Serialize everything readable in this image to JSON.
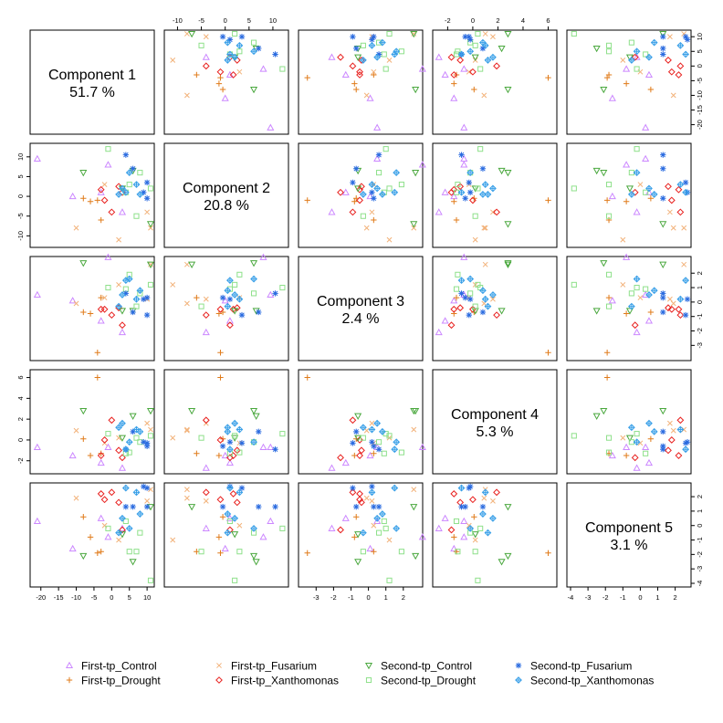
{
  "chart_data": {
    "type": "scatter",
    "components": [
      {
        "name": "Component 1",
        "variance": "51.7 %",
        "range": [
          -22,
          11
        ]
      },
      {
        "name": "Component 2",
        "variance": "20.8 %",
        "range": [
          -12,
          12.5
        ]
      },
      {
        "name": "Component 3",
        "variance": "2.4 %",
        "range": [
          -3.8,
          2.9
        ]
      },
      {
        "name": "Component 4",
        "variance": "5.3 %",
        "range": [
          -2.9,
          6.4
        ]
      },
      {
        "name": "Component 5",
        "variance": "3.1 %",
        "range": [
          -4,
          2.7
        ]
      }
    ],
    "ticks": [
      {
        "values": [
          -20,
          -15,
          -10,
          -5,
          0,
          5,
          10
        ],
        "labels": [
          "-20",
          "-15",
          "-10",
          "-5",
          "0",
          "5",
          "10"
        ]
      },
      {
        "values": [
          -10,
          -5,
          0,
          5,
          10
        ],
        "labels": [
          "-10",
          "-5",
          "0",
          "5",
          "10"
        ]
      },
      {
        "values": [
          -3,
          -2,
          -1,
          0,
          1,
          2
        ],
        "labels": [
          "-3",
          "-2",
          "-1",
          "0",
          "1",
          "2"
        ]
      },
      {
        "values": [
          -2,
          0,
          2,
          4,
          6
        ],
        "labels": [
          "-2",
          "0",
          "2",
          "4",
          "6"
        ]
      },
      {
        "values": [
          -4,
          -3,
          -2,
          -1,
          0,
          1,
          2
        ],
        "labels": [
          "-4",
          "-3",
          "-2",
          "-1",
          "0",
          "1",
          "2"
        ]
      }
    ],
    "groups": [
      {
        "name": "First-tp_Control",
        "symbol": "triangle-up",
        "color": "#cc88ff",
        "points": [
          [
            -21,
            9.5,
            0.5,
            -0.7,
            0.3
          ],
          [
            -11,
            0,
            0.1,
            -1.5,
            -1.6
          ],
          [
            -3,
            1,
            -1.3,
            -2.2,
            0.5
          ],
          [
            3,
            -4,
            -2.1,
            -2.7,
            -0.2
          ],
          [
            -1,
            8,
            3.1,
            -0.7,
            -0.8
          ]
        ]
      },
      {
        "name": "First-tp_Drought",
        "symbol": "plus",
        "color": "#e07b1a",
        "points": [
          [
            -4,
            -1,
            -3.5,
            6,
            -1.9
          ],
          [
            -8,
            -0.5,
            -0.7,
            0.1,
            0.6
          ],
          [
            -3,
            -6,
            0.3,
            -1.3,
            -1.8
          ],
          [
            -6,
            -1.3,
            -0.8,
            -1.5,
            -0.8
          ]
        ]
      },
      {
        "name": "First-tp_Fusarium",
        "symbol": "cross",
        "color": "#f2b27a",
        "points": [
          [
            2,
            -11,
            1.2,
            0.2,
            -1
          ],
          [
            11,
            -8,
            2.6,
            1,
            2.5
          ],
          [
            -10,
            -8,
            -0.1,
            0.9,
            1.9
          ],
          [
            10,
            -4,
            0.2,
            1.6,
            1.7
          ],
          [
            -2,
            3,
            0.3,
            -0.3,
            0
          ]
        ]
      },
      {
        "name": "First-tp_Xanthomonas",
        "symbol": "diamond",
        "color": "#e8211f",
        "points": [
          [
            0,
            -4,
            -0.9,
            1.9,
            2.3
          ],
          [
            2,
            2.5,
            -0.4,
            -1,
            1.6
          ],
          [
            -3,
            1.7,
            -0.5,
            -1.5,
            2.2
          ],
          [
            3,
            1,
            -1.6,
            -1.7,
            -0.3
          ],
          [
            -2,
            -1,
            -0.5,
            0,
            1.8
          ]
        ]
      },
      {
        "name": "Second-tp_Control",
        "symbol": "triangle-down",
        "color": "#4aa83e",
        "points": [
          [
            -8,
            6,
            2.7,
            2.8,
            -2.1
          ],
          [
            11,
            -7,
            2.6,
            2.8,
            1.3
          ],
          [
            6,
            6.5,
            -0.6,
            2.3,
            -2.5
          ],
          [
            3,
            2,
            -0.6,
            0.2,
            -0.6
          ]
        ]
      },
      {
        "name": "Second-tp_Drought",
        "symbol": "square",
        "color": "#8ee08a",
        "points": [
          [
            7,
            -5,
            -0.3,
            0.2,
            -1.8
          ],
          [
            11,
            2,
            1.2,
            0.4,
            -3.8
          ],
          [
            8,
            6,
            0.6,
            -0.2,
            -0.5
          ],
          [
            4,
            1,
            0.9,
            -1.3,
            0.3
          ],
          [
            5,
            3,
            1.9,
            -1.2,
            -1.8
          ],
          [
            -1,
            12,
            1,
            0.6,
            -0.2
          ]
        ]
      },
      {
        "name": "Second-tp_Fusarium",
        "symbol": "asterisk",
        "color": "#2a6be0",
        "points": [
          [
            6,
            7,
            -0.7,
            0.8,
            1.3
          ],
          [
            10,
            3.5,
            -0.9,
            -0.3,
            2.6
          ],
          [
            4,
            10.5,
            0.6,
            -0.9,
            1.3
          ],
          [
            10,
            -0.5,
            0.3,
            -0.6,
            1.3
          ],
          [
            9,
            1,
            0.2,
            -0.2,
            2.7
          ]
        ]
      },
      {
        "name": "Second-tp_Xanthomonas",
        "symbol": "diamond-plus",
        "color": "#3aa0e8",
        "points": [
          [
            5,
            6,
            1.6,
            -0.2,
            -0.2
          ],
          [
            7,
            3,
            0.2,
            1,
            2.3
          ],
          [
            4,
            1,
            1.5,
            -0.9,
            2.6
          ],
          [
            3,
            2,
            0.5,
            1.6,
            0.5
          ],
          [
            8,
            0.5,
            0.8,
            0.8,
            0.8
          ],
          [
            2,
            0.5,
            -0.3,
            1.2,
            -0.5
          ]
        ]
      }
    ],
    "legend_position": "bottom"
  }
}
